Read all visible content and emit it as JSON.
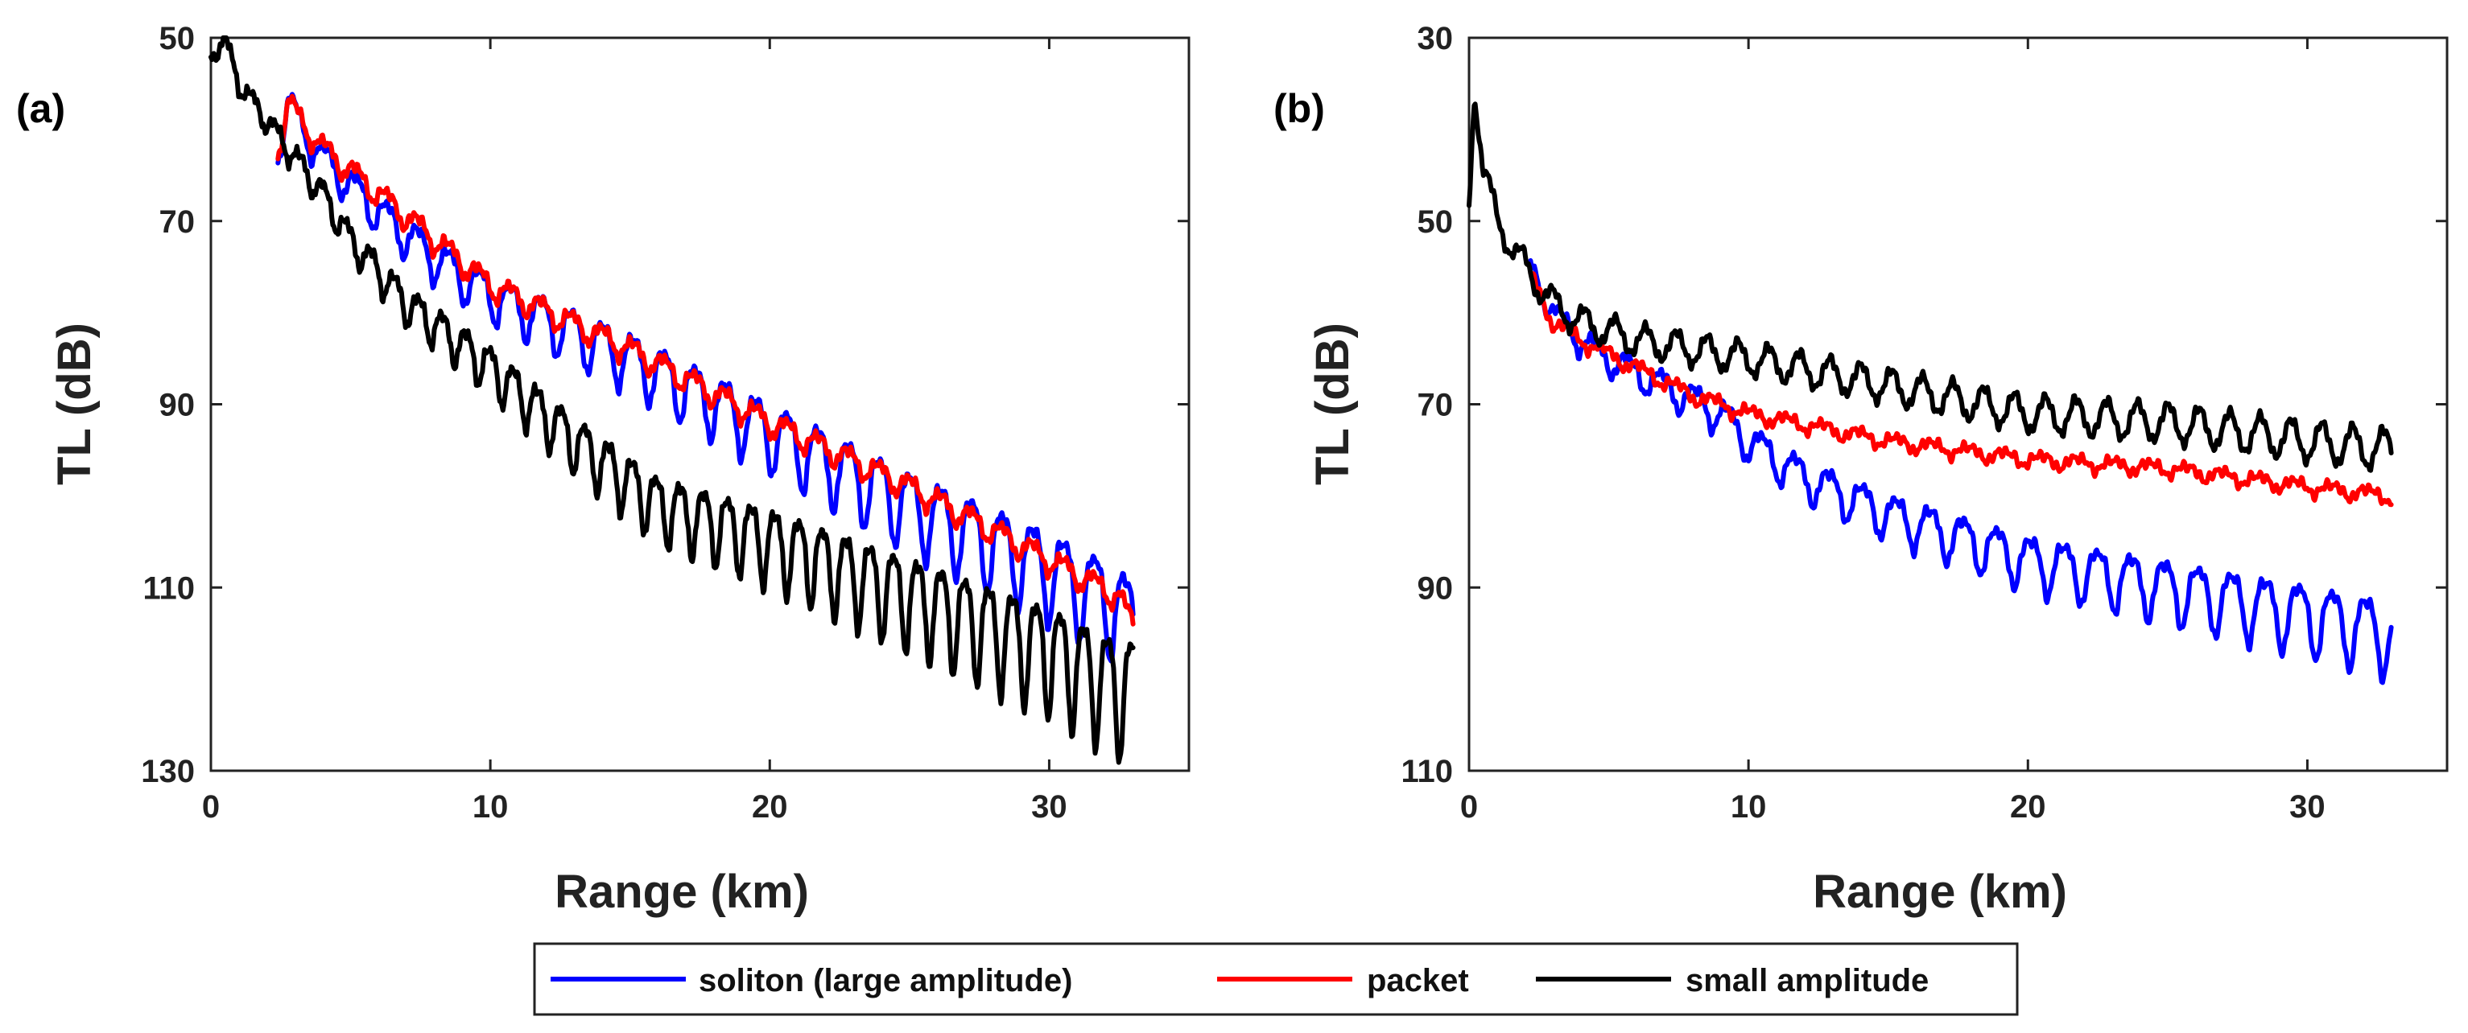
{
  "chart_data": [
    {
      "type": "line",
      "panel_label": "(a)",
      "xlabel": "Range (km)",
      "ylabel": "TL (dB)",
      "xlim": [
        0,
        35
      ],
      "ylim": [
        50,
        130
      ],
      "y_reversed": true,
      "xticks": [
        0,
        10,
        20,
        30
      ],
      "yticks": [
        50,
        70,
        90,
        110,
        130
      ],
      "grid": false,
      "series": [
        {
          "name": "soliton (large amplitude)",
          "color": "#0000ff",
          "trend": {
            "x": [
              2.4,
              2.8,
              3.3,
              4,
              6,
              8,
              10,
              15,
              20,
              25,
              30,
              32.5,
              33
            ],
            "y": [
              62,
              57,
              60,
              63,
              69,
              74,
              78,
              85,
              93,
              101,
              108,
              112,
              114
            ]
          },
          "osc": {
            "amp_start": 2.0,
            "amp_end": 6.5,
            "period": 1.1,
            "skew": "down"
          }
        },
        {
          "name": "packet",
          "color": "#ff0000",
          "trend": {
            "x": [
              2.4,
              2.8,
              3.2,
              4,
              6,
              8,
              10,
              15,
              20,
              25,
              30,
              32.5,
              33
            ],
            "y": [
              62,
              57,
              59,
              62,
              67,
              72,
              77,
              84,
              92,
              99,
              107,
              111,
              114
            ]
          },
          "osc": {
            "amp_start": 1.5,
            "amp_end": 1.5,
            "period": 1.1,
            "skew": "down"
          }
        },
        {
          "name": "small amplitude",
          "color": "#000000",
          "trend": {
            "x": [
              0,
              0.5,
              1,
              2,
              3,
              4,
              5,
              7,
              10,
              13,
              16,
              20,
              25,
              30,
              32.5,
              33
            ],
            "y": [
              52,
              50,
              55,
              59,
              63,
              67,
              72,
              79,
              86,
              94,
              101,
              105,
              111,
              117,
              121,
              121
            ]
          },
          "osc": {
            "amp_start": 1.0,
            "amp_end": 8.0,
            "period": 0.85,
            "skew": "down"
          }
        }
      ]
    },
    {
      "type": "line",
      "panel_label": "(b)",
      "xlabel": "Range (km)",
      "ylabel": "TL (dB)",
      "xlim": [
        0,
        35
      ],
      "ylim": [
        30,
        110
      ],
      "y_reversed": true,
      "xticks": [
        0,
        10,
        20,
        30
      ],
      "yticks": [
        30,
        50,
        70,
        90,
        110
      ],
      "grid": false,
      "series": [
        {
          "name": "soliton (large amplitude)",
          "color": "#0000ff",
          "trend": {
            "x": [
              2.2,
              3,
              4,
              5,
              7,
              9,
              10,
              12,
              15,
              18,
              20,
              25,
              30,
              33
            ],
            "y": [
              55,
              60,
              63,
              65,
              68,
              71,
              74,
              78,
              82,
              85,
              87,
              90,
              93,
              95
            ]
          },
          "osc": {
            "amp_start": 1.5,
            "amp_end": 5.0,
            "period": 1.2,
            "skew": "down"
          }
        },
        {
          "name": "packet",
          "color": "#ff0000",
          "trend": {
            "x": [
              2.2,
              3,
              4,
              6,
              8,
              10,
              15,
              20,
              25,
              30,
              33
            ],
            "y": [
              56,
              61,
              63,
              66,
              69,
              71,
              74,
              76,
              77,
              79,
              80
            ]
          },
          "osc": {
            "amp_start": 0.8,
            "amp_end": 0.8,
            "period": 1.3,
            "skew": "down"
          }
        },
        {
          "name": "small amplitude",
          "color": "#000000",
          "trend": {
            "x": [
              0,
              0.2,
              0.5,
              1,
              2,
              3,
              4,
              6,
              8,
              10,
              15,
              20,
              25,
              30,
              33
            ],
            "y": [
              48,
              35,
              44,
              50,
              55,
              59,
              61,
              63,
              64,
              65,
              68,
              71,
              72,
              74,
              75
            ]
          },
          "osc": {
            "amp_start": 1.5,
            "amp_end": 2.2,
            "period": 1.1,
            "skew": "none"
          }
        }
      ]
    }
  ],
  "legend": {
    "position": "bottom-center",
    "items": [
      {
        "label": "soliton (large amplitude)",
        "color": "#0000ff"
      },
      {
        "label": "packet",
        "color": "#ff0000"
      },
      {
        "label": "small amplitude",
        "color": "#000000"
      }
    ]
  }
}
